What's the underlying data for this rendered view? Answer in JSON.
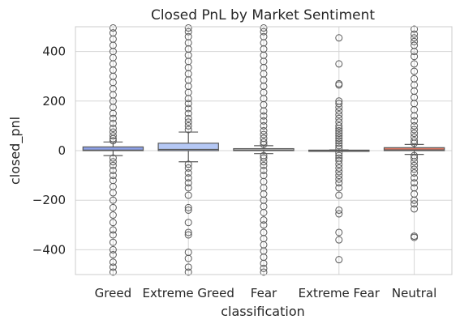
{
  "chart_data": {
    "type": "box",
    "title": "Closed PnL by Market Sentiment",
    "xlabel": "classification",
    "ylabel": "closed_pnl",
    "ylim": [
      -500,
      500
    ],
    "yticks": [
      -400,
      -200,
      0,
      200,
      400
    ],
    "ytick_labels": [
      "−400",
      "−200",
      "0",
      "200",
      "400"
    ],
    "grid": true,
    "categories": [
      "Greed",
      "Extreme Greed",
      "Fear",
      "Extreme Fear",
      "Neutral"
    ],
    "series": [
      {
        "category": "Greed",
        "color": "#8da0e6",
        "q1": 0,
        "median": 2,
        "q3": 15,
        "whisker_low": -20,
        "whisker_high": 35,
        "fliers": [
          40,
          48,
          60,
          75,
          90,
          110,
          130,
          150,
          175,
          200,
          225,
          250,
          275,
          300,
          325,
          350,
          375,
          400,
          425,
          450,
          475,
          495,
          -30,
          -45,
          -60,
          -80,
          -100,
          -120,
          -145,
          -170,
          -200,
          -230,
          -260,
          -290,
          -320,
          -340,
          -370,
          -400,
          -420,
          -450,
          -470,
          -490
        ]
      },
      {
        "category": "Extreme Greed",
        "color": "#b5c8f5",
        "q1": 0,
        "median": 5,
        "q3": 30,
        "whisker_low": -45,
        "whisker_high": 75,
        "fliers": [
          85,
          100,
          115,
          130,
          150,
          170,
          190,
          210,
          235,
          260,
          285,
          310,
          335,
          360,
          385,
          410,
          435,
          460,
          480,
          495,
          -55,
          -70,
          -90,
          -110,
          -130,
          -150,
          -180,
          -230,
          -240,
          -290,
          -330,
          -340,
          -410,
          -435,
          -470,
          -490
        ]
      },
      {
        "category": "Fear",
        "color": "#d5d5d5",
        "q1": 0,
        "median": 2,
        "q3": 8,
        "whisker_low": -12,
        "whisker_high": 20,
        "fliers": [
          25,
          35,
          50,
          65,
          80,
          100,
          120,
          140,
          160,
          185,
          210,
          235,
          260,
          285,
          310,
          335,
          360,
          385,
          410,
          435,
          460,
          480,
          495,
          -20,
          -30,
          -45,
          -60,
          -80,
          -100,
          -125,
          -150,
          -175,
          -200,
          -225,
          -250,
          -280,
          -300,
          -330,
          -355,
          -380,
          -405,
          -430,
          -455,
          -475,
          -490
        ]
      },
      {
        "category": "Extreme Fear",
        "color": "#e0d0c8",
        "q1": 0,
        "median": 0,
        "q3": 2,
        "whisker_low": -3,
        "whisker_high": 3,
        "fliers": [
          455,
          350,
          270,
          265,
          200,
          190,
          175,
          160,
          145,
          130,
          115,
          100,
          90,
          80,
          70,
          60,
          50,
          40,
          30,
          20,
          10,
          -10,
          -20,
          -30,
          -40,
          -55,
          -70,
          -85,
          -100,
          -115,
          -130,
          -150,
          -180,
          -240,
          -255,
          -330,
          -360,
          -440
        ]
      },
      {
        "category": "Neutral",
        "color": "#e07a66",
        "q1": 0,
        "median": 3,
        "q3": 12,
        "whisker_low": -15,
        "whisker_high": 25,
        "fliers": [
          30,
          40,
          55,
          70,
          85,
          100,
          120,
          140,
          165,
          190,
          215,
          240,
          265,
          290,
          320,
          350,
          380,
          400,
          425,
          440,
          455,
          470,
          490,
          -20,
          -30,
          -45,
          -60,
          -75,
          -90,
          -110,
          -130,
          -150,
          -175,
          -200,
          -215,
          -235,
          -345,
          -350
        ]
      }
    ]
  }
}
